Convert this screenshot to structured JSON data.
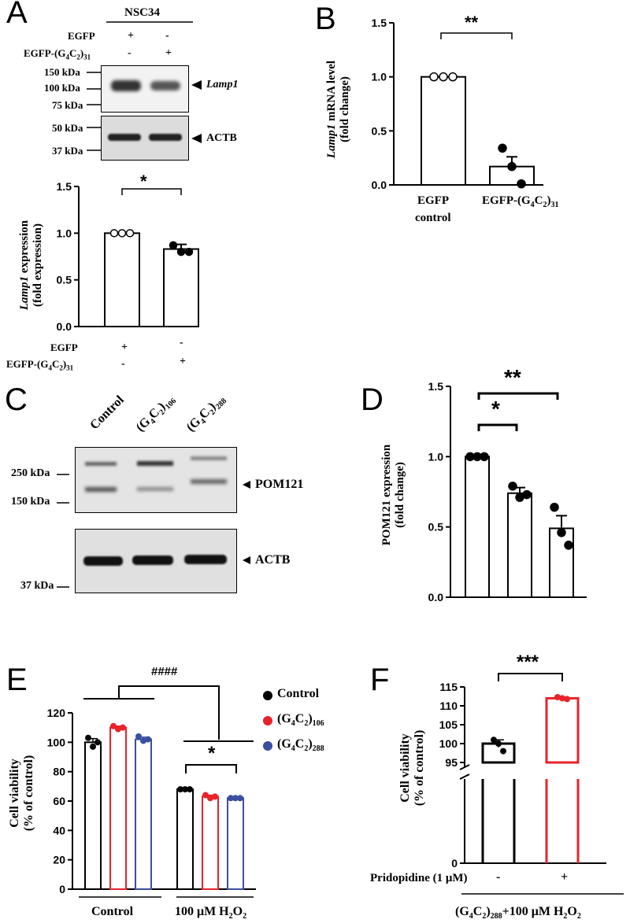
{
  "panels": {
    "A": {
      "letter": "A",
      "cell_line": "NSC34",
      "rows": [
        {
          "label": "EGFP",
          "lane1": "+",
          "lane2": "-"
        },
        {
          "label": "EGFP-(G4C2)31",
          "lane1": "-",
          "lane2": "+"
        }
      ],
      "blot_top_markers": [
        "150 kDa",
        "100 kDa",
        "75 kDa"
      ],
      "blot_top_label": "Lamp1",
      "blot_bottom_markers": [
        "50 kDa",
        "37 kDa"
      ],
      "blot_bottom_label": "ACTB",
      "significance": "*",
      "ylabel_line1": "Lamp1 expression",
      "ylabel_line2": "(fold expression)",
      "bottom_rows": [
        {
          "label": "EGFP",
          "lane1": "+",
          "lane2": "-"
        },
        {
          "label": "EGFP-(G4C2)31",
          "lane1": "-",
          "lane2": "+"
        }
      ]
    },
    "B": {
      "letter": "B",
      "significance": "**",
      "ylabel_line1": "Lamp1 mRNA level",
      "ylabel_line2": "(fold change)",
      "xlabels": [
        "EGFP",
        "control",
        "EGFP-(G4C2)31"
      ]
    },
    "C": {
      "letter": "C",
      "lanes": [
        "Control",
        "(G4C2)106",
        "(G4C2)288"
      ],
      "markers_top": [
        "250 kDa",
        "150 kDa"
      ],
      "label_top": "POM121",
      "marker_bottom": "37 kDa",
      "label_bottom": "ACTB"
    },
    "D": {
      "letter": "D",
      "sig1": "*",
      "sig2": "**",
      "ylabel_line1": "POM121 expression",
      "ylabel_line2": "(fold change)"
    },
    "E": {
      "letter": "E",
      "sig_hash": "####",
      "sig_star": "*",
      "legend": [
        "Control",
        "(G4C2)106",
        "(G4C2)288"
      ],
      "ylabel_line1": "Cell viability",
      "ylabel_line2": "(% of control)",
      "group_labels": [
        "Control",
        "100 μM H2O2"
      ]
    },
    "F": {
      "letter": "F",
      "significance": "***",
      "ylabel_line1": "Cell viability",
      "ylabel_line2": "(% of control)",
      "row_label": "Pridopidine (1 μM)",
      "row_values": [
        "-",
        "+"
      ],
      "footer": "(G4C2)288+100 μM H2O2"
    }
  },
  "colors": {
    "control": "#000000",
    "g4c2_106": "#e8232a",
    "g4c2_288": "#3b4fa0"
  },
  "chart_data": [
    {
      "type": "bar",
      "panel": "A",
      "categories": [
        "EGFP",
        "EGFP-(G4C2)31"
      ],
      "values": [
        1.0,
        0.83
      ],
      "errors": [
        0.0,
        0.05
      ],
      "points": [
        [
          1.0,
          1.0,
          1.0
        ],
        [
          0.87,
          0.8,
          0.8
        ]
      ],
      "ylabel": "Lamp1 expression (fold expression)",
      "ylim": [
        0,
        1.5
      ],
      "yticks": [
        0.0,
        0.5,
        1.0,
        1.5
      ]
    },
    {
      "type": "bar",
      "panel": "B",
      "categories": [
        "EGFP control",
        "EGFP-(G4C2)31"
      ],
      "values": [
        1.0,
        0.17
      ],
      "errors": [
        0.0,
        0.09
      ],
      "points": [
        [
          1.0,
          1.0,
          1.0
        ],
        [
          0.34,
          0.17,
          0.01
        ]
      ],
      "ylabel": "Lamp1 mRNA level (fold change)",
      "ylim": [
        0,
        1.5
      ],
      "yticks": [
        0.0,
        0.5,
        1.0,
        1.5
      ]
    },
    {
      "type": "bar",
      "panel": "D",
      "categories": [
        "Control",
        "(G4C2)106",
        "(G4C2)288"
      ],
      "values": [
        1.0,
        0.74,
        0.49
      ],
      "errors": [
        0.0,
        0.04,
        0.09
      ],
      "points": [
        [
          1.0,
          1.0,
          1.0
        ],
        [
          0.79,
          0.71,
          0.73
        ],
        [
          0.64,
          0.46,
          0.37
        ]
      ],
      "ylabel": "POM121 expression (fold change)",
      "ylim": [
        0,
        1.5
      ],
      "yticks": [
        0.0,
        0.5,
        1.0,
        1.5
      ]
    },
    {
      "type": "bar",
      "panel": "E",
      "groups": [
        "Control",
        "100 μM H2O2"
      ],
      "series": [
        {
          "name": "Control",
          "values": [
            100,
            68
          ],
          "errors": [
            2.5,
            0.3
          ],
          "points": [
            [
              103,
              97,
              100
            ],
            [
              68,
              68,
              68
            ]
          ]
        },
        {
          "name": "(G4C2)106",
          "values": [
            110,
            63
          ],
          "errors": [
            1,
            1
          ],
          "points": [
            [
              111,
              109,
              110
            ],
            [
              64,
              62,
              63
            ]
          ]
        },
        {
          "name": "(G4C2)288",
          "values": [
            102,
            62
          ],
          "errors": [
            1.5,
            0.5
          ],
          "points": [
            [
              104,
              101,
              102
            ],
            [
              62,
              62,
              62
            ]
          ]
        }
      ],
      "ylabel": "Cell viability (% of control)",
      "ylim": [
        0,
        120
      ],
      "yticks": [
        0,
        20,
        40,
        60,
        80,
        100,
        120
      ]
    },
    {
      "type": "bar",
      "panel": "F",
      "categories": [
        "-",
        "+"
      ],
      "values": [
        100,
        112
      ],
      "errors": [
        1,
        0.3
      ],
      "points": [
        [
          101,
          100,
          98
        ],
        [
          112.3,
          112,
          111.8
        ]
      ],
      "ylabel": "Cell viability (% of control)",
      "ylim": [
        0,
        115
      ],
      "yticks": [
        0,
        95,
        100,
        105,
        110,
        115
      ],
      "axis_break": [
        0,
        95
      ]
    }
  ]
}
